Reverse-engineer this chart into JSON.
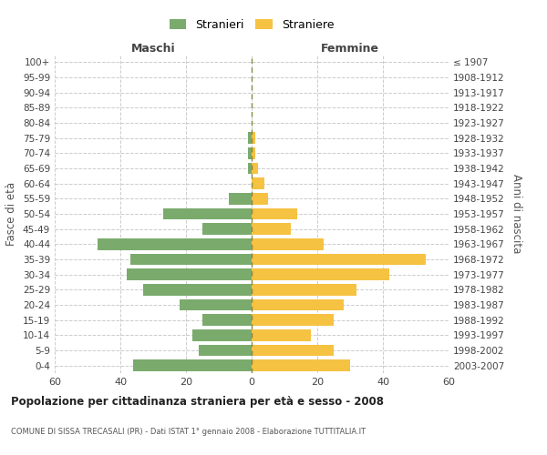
{
  "age_groups": [
    "100+",
    "95-99",
    "90-94",
    "85-89",
    "80-84",
    "75-79",
    "70-74",
    "65-69",
    "60-64",
    "55-59",
    "50-54",
    "45-49",
    "40-44",
    "35-39",
    "30-34",
    "25-29",
    "20-24",
    "15-19",
    "10-14",
    "5-9",
    "0-4"
  ],
  "birth_years": [
    "≤ 1907",
    "1908-1912",
    "1913-1917",
    "1918-1922",
    "1923-1927",
    "1928-1932",
    "1933-1937",
    "1938-1942",
    "1943-1947",
    "1948-1952",
    "1953-1957",
    "1958-1962",
    "1963-1967",
    "1968-1972",
    "1973-1977",
    "1978-1982",
    "1983-1987",
    "1988-1992",
    "1993-1997",
    "1998-2002",
    "2003-2007"
  ],
  "males": [
    0,
    0,
    0,
    0,
    0,
    1,
    1,
    1,
    0,
    7,
    27,
    15,
    47,
    37,
    38,
    33,
    22,
    15,
    18,
    16,
    36
  ],
  "females": [
    0,
    0,
    0,
    0,
    0,
    1,
    1,
    2,
    4,
    5,
    14,
    12,
    22,
    53,
    42,
    32,
    28,
    25,
    18,
    25,
    30
  ],
  "male_color": "#7aab6d",
  "female_color": "#f5c242",
  "background_color": "#ffffff",
  "grid_color": "#cccccc",
  "title": "Popolazione per cittadinanza straniera per età e sesso - 2008",
  "subtitle": "COMUNE DI SISSA TRECASALI (PR) - Dati ISTAT 1° gennaio 2008 - Elaborazione TUTTITALIA.IT",
  "xlabel_left": "Maschi",
  "xlabel_right": "Femmine",
  "ylabel_left": "Fasce di età",
  "ylabel_right": "Anni di nascita",
  "legend_male": "Stranieri",
  "legend_female": "Straniere",
  "xlim": 60,
  "xticks": [
    -60,
    -40,
    -20,
    0,
    20,
    40,
    60
  ]
}
